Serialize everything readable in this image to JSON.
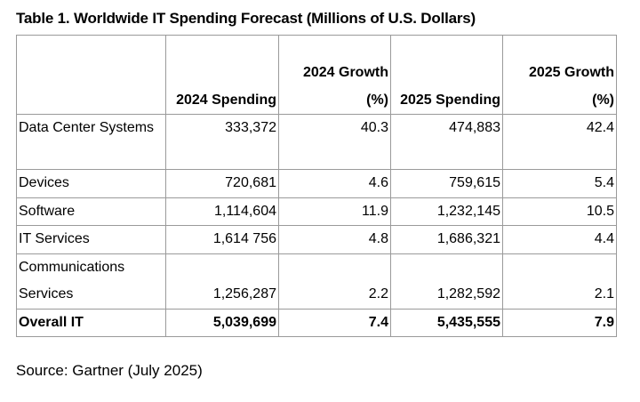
{
  "title": "Table 1. Worldwide IT Spending Forecast (Millions of U.S. Dollars)",
  "headers": [
    "",
    "2024 Spending",
    "2024 Growth (%)",
    "2025 Spending",
    "2025 Growth (%)"
  ],
  "rows": [
    {
      "label": "Data Center Systems",
      "cells": [
        "333,372",
        "40.3",
        "474,883",
        "42.4"
      ]
    },
    {
      "label": "Devices",
      "cells": [
        "720,681",
        "4.6",
        "759,615",
        "5.4"
      ]
    },
    {
      "label": "Software",
      "cells": [
        "1,114,604",
        "11.9",
        "1,232,145",
        "10.5"
      ]
    },
    {
      "label": "IT Services",
      "cells": [
        "1,614 756",
        "4.8",
        "1,686,321",
        "4.4"
      ]
    },
    {
      "label": "Communications Services",
      "cells": [
        "1,256,287",
        "2.2",
        "1,282,592",
        "2.1"
      ]
    },
    {
      "label": "Overall IT",
      "cells": [
        "5,039,699",
        "7.4",
        "5,435,555",
        "7.9"
      ]
    }
  ],
  "source": "Source: Gartner (July 2025)"
}
